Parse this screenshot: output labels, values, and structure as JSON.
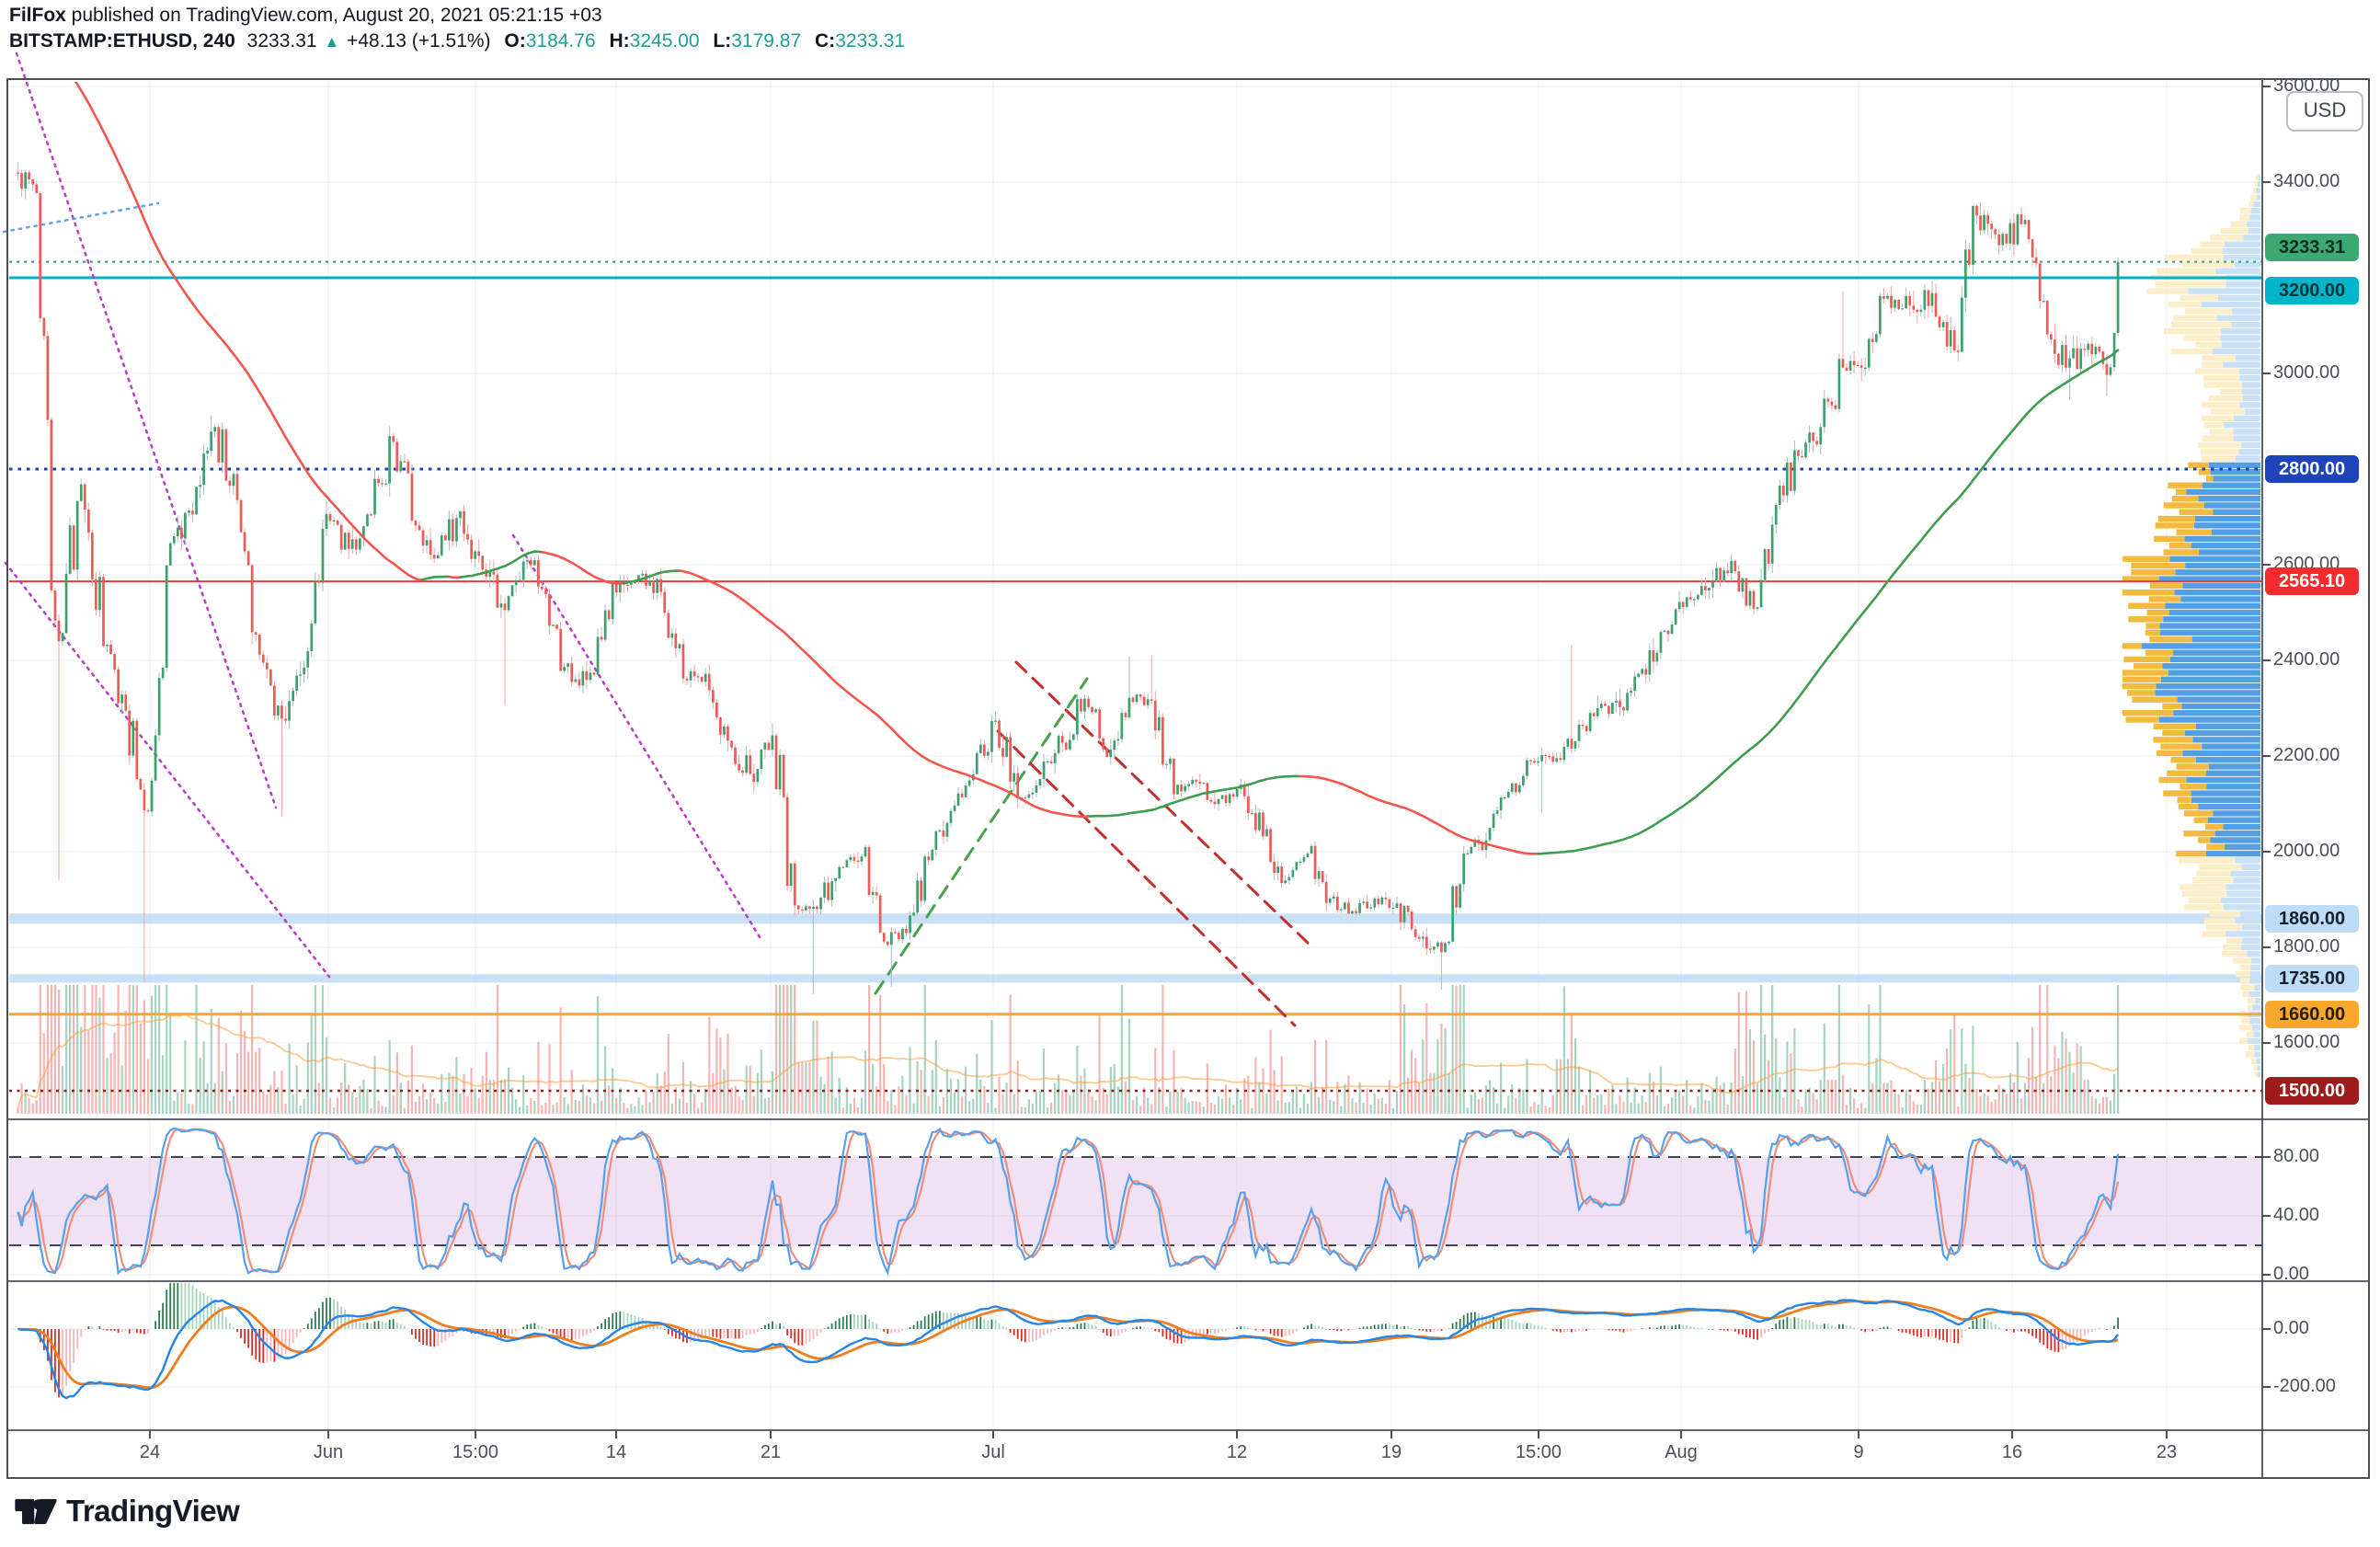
{
  "header": {
    "byline_bold": "FilFox",
    "byline_rest": " published on TradingView.com, August 20, 2021 05:21:15 +03",
    "symbol_interval": "BITSTAMP:ETHUSD, 240",
    "last_price": "3233.31",
    "change": "+48.13 (+1.51%)",
    "icons": {
      "up_triangle": "▲"
    },
    "ohlc": [
      {
        "k": "O:",
        "v": "3184.76"
      },
      {
        "k": "H:",
        "v": "3245.00"
      },
      {
        "k": "L:",
        "v": "3179.87"
      },
      {
        "k": "C:",
        "v": "3233.31"
      }
    ]
  },
  "axis": {
    "currency_button": "USD",
    "price_ticks": [
      {
        "label": "3600.00",
        "price": 3600
      },
      {
        "label": "3400.00",
        "price": 3400
      },
      {
        "label": "3000.00",
        "price": 3000
      },
      {
        "label": "2600.00",
        "price": 2600
      },
      {
        "label": "2400.00",
        "price": 2400
      },
      {
        "label": "2200.00",
        "price": 2200
      },
      {
        "label": "2000.00",
        "price": 2000
      },
      {
        "label": "1800.00",
        "price": 1800
      },
      {
        "label": "1600.00",
        "price": 1600
      }
    ],
    "badges": [
      {
        "label": "3233.31",
        "price": 3233.31,
        "dy": -16,
        "bg": "#3ea873",
        "fg": "#0b2f1f"
      },
      {
        "label": "3200.00",
        "price": 3200,
        "dy": 14,
        "bg": "#00b5c9",
        "fg": "#09343a"
      },
      {
        "label": "2800.00",
        "price": 2800,
        "dy": 0,
        "bg": "#1d44b8",
        "fg": "#ffffff"
      },
      {
        "label": "2565.10",
        "price": 2565.1,
        "dy": 0,
        "bg": "#f22c2c",
        "fg": "#ffffff"
      },
      {
        "label": "1860.00",
        "price": 1860,
        "dy": 0,
        "bg": "#bcdcf8",
        "fg": "#16202c"
      },
      {
        "label": "1735.00",
        "price": 1735,
        "dy": 0,
        "bg": "#bcdcf8",
        "fg": "#16202c"
      },
      {
        "label": "1660.00",
        "price": 1660,
        "dy": 0,
        "bg": "#f7a92d",
        "fg": "#2b1c05"
      },
      {
        "label": "1500.00",
        "price": 1500,
        "dy": 0,
        "bg": "#9c1c1c",
        "fg": "#ffffff"
      }
    ],
    "stoch_ticks": [
      {
        "label": "80.00",
        "v": 80
      },
      {
        "label": "40.00",
        "v": 40
      },
      {
        "label": "0.00",
        "v": 0
      }
    ],
    "macd_ticks": [
      {
        "label": "0.00",
        "v": 0
      },
      {
        "label": "-200.00",
        "v": -200
      }
    ],
    "time_ticks": [
      {
        "label": "24",
        "x": 163
      },
      {
        "label": "Jun",
        "x": 357
      },
      {
        "label": "15:00",
        "x": 517
      },
      {
        "label": "14",
        "x": 670
      },
      {
        "label": "21",
        "x": 838
      },
      {
        "label": "Jul",
        "x": 1080
      },
      {
        "label": "12",
        "x": 1345
      },
      {
        "label": "19",
        "x": 1513
      },
      {
        "label": "15:00",
        "x": 1673
      },
      {
        "label": "Aug",
        "x": 1828
      },
      {
        "label": "9",
        "x": 2021
      },
      {
        "label": "16",
        "x": 2188
      },
      {
        "label": "23",
        "x": 2356
      }
    ],
    "grid_prices": [
      3600,
      3400,
      3200,
      3000,
      2800,
      2600,
      2400,
      2200,
      2000,
      1800,
      1600
    ]
  },
  "footer": {
    "logo_text": "TradingView"
  },
  "chart_data": {
    "type": "candlestick",
    "symbol": "BITSTAMP:ETHUSD",
    "interval": "240",
    "title": "BITSTAMP:ETHUSD, 240",
    "ohlc_header": {
      "open": 3184.76,
      "high": 3245.0,
      "low": 3179.87,
      "close": 3233.31,
      "change": 48.13,
      "change_pct": 1.51
    },
    "ylim": [
      1438,
      3617
    ],
    "xrange_days": [
      "2021-05-18",
      "2021-08-20"
    ],
    "daily_anchors": [
      [
        "05-18",
        3377,
        null,
        null,
        null
      ],
      [
        "05-19",
        2440,
        1940,
        null,
        1.0
      ],
      [
        "05-20",
        2768,
        null,
        null,
        0.7
      ],
      [
        "05-21",
        2430,
        null,
        null,
        0.6
      ],
      [
        "05-22",
        2295,
        null,
        null,
        0.45
      ],
      [
        "05-23",
        2084,
        1728,
        null,
        0.8
      ],
      [
        "05-24",
        2645,
        null,
        null,
        0.6
      ],
      [
        "05-25",
        2705,
        null,
        null,
        null
      ],
      [
        "05-26",
        2888,
        null,
        2912,
        0.45
      ],
      [
        "05-27",
        2735,
        null,
        null,
        null
      ],
      [
        "05-28",
        2412,
        null,
        null,
        0.5
      ],
      [
        "05-29",
        2278,
        2075,
        null,
        null
      ],
      [
        "05-30",
        2385,
        null,
        null,
        null
      ],
      [
        "05-31",
        2706,
        null,
        null,
        0.45
      ],
      [
        "06-01",
        2633,
        null,
        null,
        null
      ],
      [
        "06-02",
        2705,
        null,
        null,
        null
      ],
      [
        "06-03",
        2857,
        null,
        2890,
        null
      ],
      [
        "06-04",
        2682,
        null,
        null,
        null
      ],
      [
        "06-05",
        2620,
        null,
        null,
        null
      ],
      [
        "06-06",
        2712,
        null,
        null,
        null
      ],
      [
        "06-07",
        2590,
        null,
        null,
        null
      ],
      [
        "06-08",
        2505,
        2305,
        null,
        0.5
      ],
      [
        "06-09",
        2610,
        null,
        null,
        null
      ],
      [
        "06-10",
        2472,
        null,
        null,
        null
      ],
      [
        "06-11",
        2355,
        null,
        null,
        null
      ],
      [
        "06-12",
        2370,
        null,
        null,
        null
      ],
      [
        "06-13",
        2542,
        null,
        null,
        null
      ],
      [
        "06-14",
        2578,
        null,
        null,
        null
      ],
      [
        "06-15",
        2543,
        null,
        null,
        null
      ],
      [
        "06-16",
        2362,
        null,
        null,
        null
      ],
      [
        "06-17",
        2372,
        null,
        null,
        null
      ],
      [
        "06-18",
        2232,
        null,
        null,
        0.4
      ],
      [
        "06-19",
        2163,
        null,
        null,
        null
      ],
      [
        "06-20",
        2243,
        null,
        null,
        null
      ],
      [
        "06-21",
        1888,
        1865,
        null,
        0.95
      ],
      [
        "06-22",
        1880,
        1702,
        null,
        0.75
      ],
      [
        "06-23",
        1968,
        null,
        null,
        null
      ],
      [
        "06-24",
        1990,
        null,
        null,
        null
      ],
      [
        "06-25",
        1812,
        null,
        null,
        0.4
      ],
      [
        "06-26",
        1830,
        1717,
        null,
        null
      ],
      [
        "06-27",
        1982,
        null,
        null,
        null
      ],
      [
        "06-28",
        2085,
        null,
        null,
        null
      ],
      [
        "06-29",
        2162,
        null,
        null,
        null
      ],
      [
        "06-30",
        2274,
        null,
        null,
        null
      ],
      [
        "07-01",
        2112,
        null,
        null,
        null
      ],
      [
        "07-02",
        2152,
        null,
        null,
        null
      ],
      [
        "07-03",
        2228,
        null,
        null,
        null
      ],
      [
        "07-04",
        2320,
        null,
        null,
        null
      ],
      [
        "07-05",
        2198,
        null,
        null,
        null
      ],
      [
        "07-06",
        2322,
        null,
        2408,
        0.4
      ],
      [
        "07-07",
        2316,
        null,
        2410,
        null
      ],
      [
        "07-08",
        2120,
        null,
        null,
        null
      ],
      [
        "07-09",
        2146,
        null,
        null,
        null
      ],
      [
        "07-10",
        2110,
        null,
        null,
        null
      ],
      [
        "07-11",
        2140,
        null,
        null,
        null
      ],
      [
        "07-12",
        2032,
        null,
        null,
        null
      ],
      [
        "07-13",
        1940,
        null,
        null,
        null
      ],
      [
        "07-14",
        1996,
        null,
        null,
        null
      ],
      [
        "07-15",
        1902,
        null,
        null,
        null
      ],
      [
        "07-16",
        1876,
        null,
        null,
        null
      ],
      [
        "07-17",
        1902,
        null,
        null,
        null
      ],
      [
        "07-18",
        1892,
        null,
        null,
        null
      ],
      [
        "07-19",
        1818,
        null,
        null,
        0.45
      ],
      [
        "07-20",
        1790,
        1712,
        null,
        0.6
      ],
      [
        "07-21",
        1996,
        null,
        null,
        0.6
      ],
      [
        "07-22",
        2024,
        null,
        null,
        null
      ],
      [
        "07-23",
        2125,
        null,
        null,
        null
      ],
      [
        "07-24",
        2190,
        null,
        null,
        null
      ],
      [
        "07-25",
        2188,
        2082,
        null,
        null
      ],
      [
        "07-26",
        2231,
        null,
        2432,
        0.8
      ],
      [
        "07-27",
        2300,
        null,
        null,
        null
      ],
      [
        "07-28",
        2302,
        null,
        null,
        null
      ],
      [
        "07-29",
        2382,
        null,
        null,
        null
      ],
      [
        "07-30",
        2462,
        null,
        null,
        null
      ],
      [
        "07-31",
        2532,
        null,
        null,
        null
      ],
      [
        "08-01",
        2552,
        null,
        null,
        null
      ],
      [
        "08-02",
        2608,
        null,
        null,
        null
      ],
      [
        "08-03",
        2508,
        null,
        null,
        0.4
      ],
      [
        "08-04",
        2725,
        null,
        null,
        0.45
      ],
      [
        "08-05",
        2827,
        null,
        null,
        null
      ],
      [
        "08-06",
        2888,
        null,
        null,
        null
      ],
      [
        "08-07",
        3012,
        null,
        3172,
        0.5
      ],
      [
        "08-08",
        3012,
        null,
        null,
        null
      ],
      [
        "08-09",
        3162,
        null,
        null,
        0.45
      ],
      [
        "08-10",
        3142,
        null,
        null,
        null
      ],
      [
        "08-11",
        3168,
        null,
        null,
        null
      ],
      [
        "08-12",
        3048,
        null,
        null,
        0.4
      ],
      [
        "08-13",
        3330,
        null,
        3345,
        null
      ],
      [
        "08-14",
        3268,
        null,
        3338,
        null
      ],
      [
        "08-15",
        3312,
        null,
        3336,
        null
      ],
      [
        "08-16",
        3152,
        null,
        null,
        0.45
      ],
      [
        "08-17",
        3012,
        null,
        null,
        0.55
      ],
      [
        "08-18",
        3062,
        2946,
        null,
        0.5
      ],
      [
        "08-19",
        3013,
        2952,
        null,
        null
      ],
      [
        "08-20",
        3233,
        null,
        null,
        null
      ]
    ],
    "levels": [
      {
        "price": 3233.31,
        "color": "#2f9e6e",
        "w": 2,
        "dash": "3 5"
      },
      {
        "price": 3200,
        "color": "#00b2c7",
        "w": 3,
        "dash": null
      },
      {
        "price": 2800,
        "color": "#1d3fa6",
        "w": 3,
        "dash": "3.5 6"
      },
      {
        "price": 2565.1,
        "color": "#f03a3a",
        "w": 2,
        "dash": null
      },
      {
        "price": 1660,
        "color": "#f6a632",
        "w": 3,
        "dash": null
      },
      {
        "price": 1500,
        "color": "#8e1f1f",
        "w": 2.5,
        "dash": "3 5.5"
      }
    ],
    "bands": [
      {
        "price": 1860,
        "h": 11,
        "color": "#bcd8f4"
      },
      {
        "price": 1735,
        "h": 9,
        "color": "#bcd8f4"
      }
    ],
    "trendlines": [
      {
        "x1": 18,
        "y1": 58,
        "x2": 300,
        "y2": 878,
        "color": "#bb3fc4",
        "style": "dot",
        "w": 2.6
      },
      {
        "x1": 6,
        "y1": 612,
        "x2": 358,
        "y2": 1062,
        "color": "#bb3fc4",
        "style": "dot",
        "w": 2.6
      },
      {
        "x1": 558,
        "y1": 582,
        "x2": 828,
        "y2": 1022,
        "color": "#bb3fc4",
        "style": "dot",
        "w": 2.6
      },
      {
        "x1": 4,
        "y1": 252,
        "x2": 172,
        "y2": 221,
        "color": "#64a0e8",
        "style": "dot",
        "w": 2.5
      },
      {
        "x1": 952,
        "y1": 1080,
        "x2": 1182,
        "y2": 738,
        "color": "#46a24e",
        "style": "dash",
        "w": 3
      },
      {
        "x1": 1105,
        "y1": 720,
        "x2": 1422,
        "y2": 1025,
        "color": "#c2312f",
        "style": "dash",
        "w": 3
      },
      {
        "x1": 1085,
        "y1": 795,
        "x2": 1408,
        "y2": 1115,
        "color": "#c2312f",
        "style": "dash",
        "w": 3
      }
    ],
    "indicators": {
      "ma_period": 100,
      "ma_up_color": "#3d9e4f",
      "ma_down_color": "#f4564e",
      "stochastic": {
        "k": 14,
        "k_smooth": 3,
        "d": 3,
        "band": [
          20,
          80
        ],
        "k_color": "#56a0f0",
        "d_color": "#ee8d7a",
        "band_fill": "rgba(206,147,216,0.28)"
      },
      "macd": {
        "fast": 12,
        "slow": 26,
        "signal": 9,
        "line_color": "#2386e8",
        "signal_color": "#f07d1e"
      }
    },
    "volume": {
      "up_color": "rgba(60,160,110,0.45)",
      "down_color": "rgba(235,90,90,0.45)",
      "ma_color": "#ff9c37"
    },
    "volume_profile": {
      "value_area": [
        1988,
        2818
      ],
      "sat_yellow": "#f2bb3f",
      "sat_blue": "#549fe3",
      "pale_yellow": "#fbeec9",
      "pale_blue": "#c9e1f6"
    }
  }
}
